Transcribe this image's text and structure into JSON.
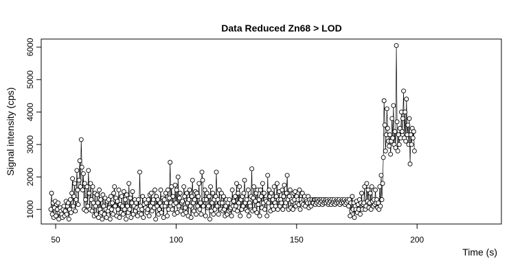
{
  "chart_data": {
    "type": "line",
    "title": "Data Reduced Zn68 > LOD",
    "xlabel": "Time (s)",
    "ylabel": "Signal intensity (cps)",
    "xlim": [
      44,
      235
    ],
    "ylim": [
      550,
      6250
    ],
    "x_ticks": [
      50,
      100,
      150,
      200
    ],
    "y_ticks": [
      1000,
      2000,
      3000,
      4000,
      5000,
      6000
    ],
    "x_tick_labels": [
      "50",
      "100",
      "150",
      "200"
    ],
    "y_tick_labels": [
      "1000",
      "2000",
      "3000",
      "4000",
      "5000",
      "6000"
    ],
    "grid": false,
    "style": "points connected by lines (open circles)",
    "series": [
      {
        "start": 48.0,
        "step": 0.3,
        "values": [
          1000,
          1500,
          850,
          1200,
          750,
          1050,
          1250,
          800,
          1150,
          1000,
          1200,
          700,
          900,
          1050,
          950,
          850,
          750,
          1000,
          1100,
          800,
          950,
          1250,
          850,
          1100,
          1200,
          700,
          1000,
          1300,
          900,
          1500,
          1950,
          1100,
          1400,
          1800,
          950,
          1300,
          2200,
          1600,
          1150,
          1900,
          2500,
          1700,
          3150,
          2300,
          1600,
          2100,
          1000,
          1800,
          1300,
          950,
          1700,
          1100,
          2200,
          1500,
          1000,
          1800,
          1300,
          950,
          1700,
          1200,
          800,
          1500,
          1100,
          850,
          1450,
          1200,
          750,
          1600,
          1000,
          1300,
          900,
          700,
          1450,
          1100,
          850,
          1350,
          1000,
          750,
          1250,
          950,
          1300,
          1050,
          700,
          1400,
          1000,
          1200,
          850,
          1500,
          1700,
          1100,
          1350,
          800,
          1250,
          1000,
          1600,
          750,
          1150,
          900,
          1400,
          1100,
          850,
          1550,
          1000,
          1300,
          700,
          1450,
          1100,
          900,
          1800,
          1000,
          1350,
          750,
          1200,
          1550,
          850,
          1100,
          1300,
          950,
          1200,
          1050,
          800,
          1300,
          1000,
          2150,
          1100,
          850,
          1000,
          1400,
          750,
          1150,
          1300,
          1050,
          1200,
          900,
          1000,
          1300,
          800,
          1450,
          1100,
          1500,
          950,
          1200,
          1300,
          1050,
          1600,
          700,
          1400,
          1100,
          1300,
          850,
          1000,
          1200,
          1600,
          900,
          1100,
          1350,
          750,
          1300,
          1100,
          1500,
          1200,
          800,
          1600,
          1000,
          1350,
          2450,
          1200,
          1700,
          1000,
          1400,
          1150,
          850,
          1750,
          1200,
          1600,
          900,
          2000,
          1100,
          1350,
          1500,
          950,
          1200,
          1250,
          850,
          1700,
          1400,
          1050,
          900,
          1500,
          1200,
          800,
          1300,
          1600,
          1100,
          750,
          1400,
          1900,
          1200,
          950,
          1300,
          1550,
          850,
          1500,
          1100,
          1400,
          1800,
          1000,
          1200,
          850,
          2150,
          1900,
          1100,
          1300,
          1600,
          800,
          1300,
          1500,
          1050,
          1100,
          1400,
          700,
          1700,
          950,
          1200,
          1500,
          850,
          1300,
          1000,
          1400,
          2150,
          1100,
          1300,
          850,
          1600,
          1200,
          1000,
          1500,
          1200,
          950,
          1400,
          1000,
          800,
          1100,
          1300,
          850,
          1200,
          950,
          1300,
          1000,
          1050,
          800,
          1600,
          1100,
          1250,
          1000,
          1400,
          1100,
          1800,
          950,
          1500,
          1200,
          1700,
          800,
          1300,
          1000,
          1400,
          1100,
          1500,
          1900,
          1200,
          1000,
          1300,
          950,
          1600,
          800,
          1200,
          1100,
          1400,
          2250,
          950,
          1350,
          1700,
          1000,
          1250,
          1500,
          900,
          1600,
          1150,
          1300,
          800,
          1600,
          1400,
          1050,
          1800,
          1200,
          1500,
          1000,
          1300,
          1250,
          800,
          2050,
          1200,
          1600,
          1400,
          950,
          1500,
          1100,
          1300,
          1000,
          1700,
          1200,
          1100,
          1400,
          1800,
          1000,
          1300,
          1550,
          1100,
          1300,
          1200,
          1600,
          1000,
          1400,
          1750,
          1100,
          1200,
          1500,
          2050,
          1300,
          1000,
          1400,
          1600,
          1050,
          1300,
          1250,
          1000,
          1500,
          1300,
          1550,
          1100,
          1400,
          1200,
          1300,
          1150,
          1600,
          1000,
          1300,
          1200,
          1500,
          1150,
          1300,
          1400,
          1100,
          1300,
          1250,
          1200,
          1400,
          1050,
          1300,
          1200,
          1100,
          1300,
          1200,
          1200,
          1300,
          1300,
          1150,
          1300,
          1200,
          1300,
          1250,
          1150,
          1300,
          1200,
          1300,
          1250,
          1150,
          1300,
          1200,
          1250,
          1300,
          1200,
          1300,
          1250,
          1150,
          1200,
          1300,
          1250,
          1150,
          1300,
          1200,
          1250,
          1300,
          1150,
          1250,
          1200,
          1300,
          1250,
          1200,
          1300,
          1150,
          1250,
          1200,
          1300,
          1250,
          1200,
          1300,
          1150,
          1250,
          1200,
          1300,
          1250,
          1100,
          1300,
          800,
          1200,
          950,
          1400,
          1000,
          1200,
          750,
          1100,
          1000,
          1250,
          900,
          1150,
          1000,
          1300,
          850,
          1200,
          1500,
          1000,
          1150,
          1200,
          1700,
          1000,
          1100,
          1800,
          1250,
          1600,
          1050,
          1200,
          1500,
          1000,
          1700,
          1250,
          1100,
          1300,
          1150,
          1600,
          1200,
          1300,
          1050,
          1200,
          1000,
          1700,
          1100,
          2050,
          1300,
          1800,
          2600,
          4350,
          3600,
          2800,
          3300,
          4100,
          3500,
          3100,
          2950,
          3300,
          2700,
          3100,
          3800,
          3200,
          4200,
          3000,
          3400,
          2900,
          6050,
          3700,
          2800,
          3300,
          3000,
          3500,
          3200,
          4000,
          3400,
          3800,
          4650,
          3200,
          4000,
          3100,
          4400,
          3300,
          3600,
          3000,
          3800,
          2400,
          3300,
          3000,
          3500,
          3200,
          3400,
          2800
        ]
      }
    ]
  }
}
